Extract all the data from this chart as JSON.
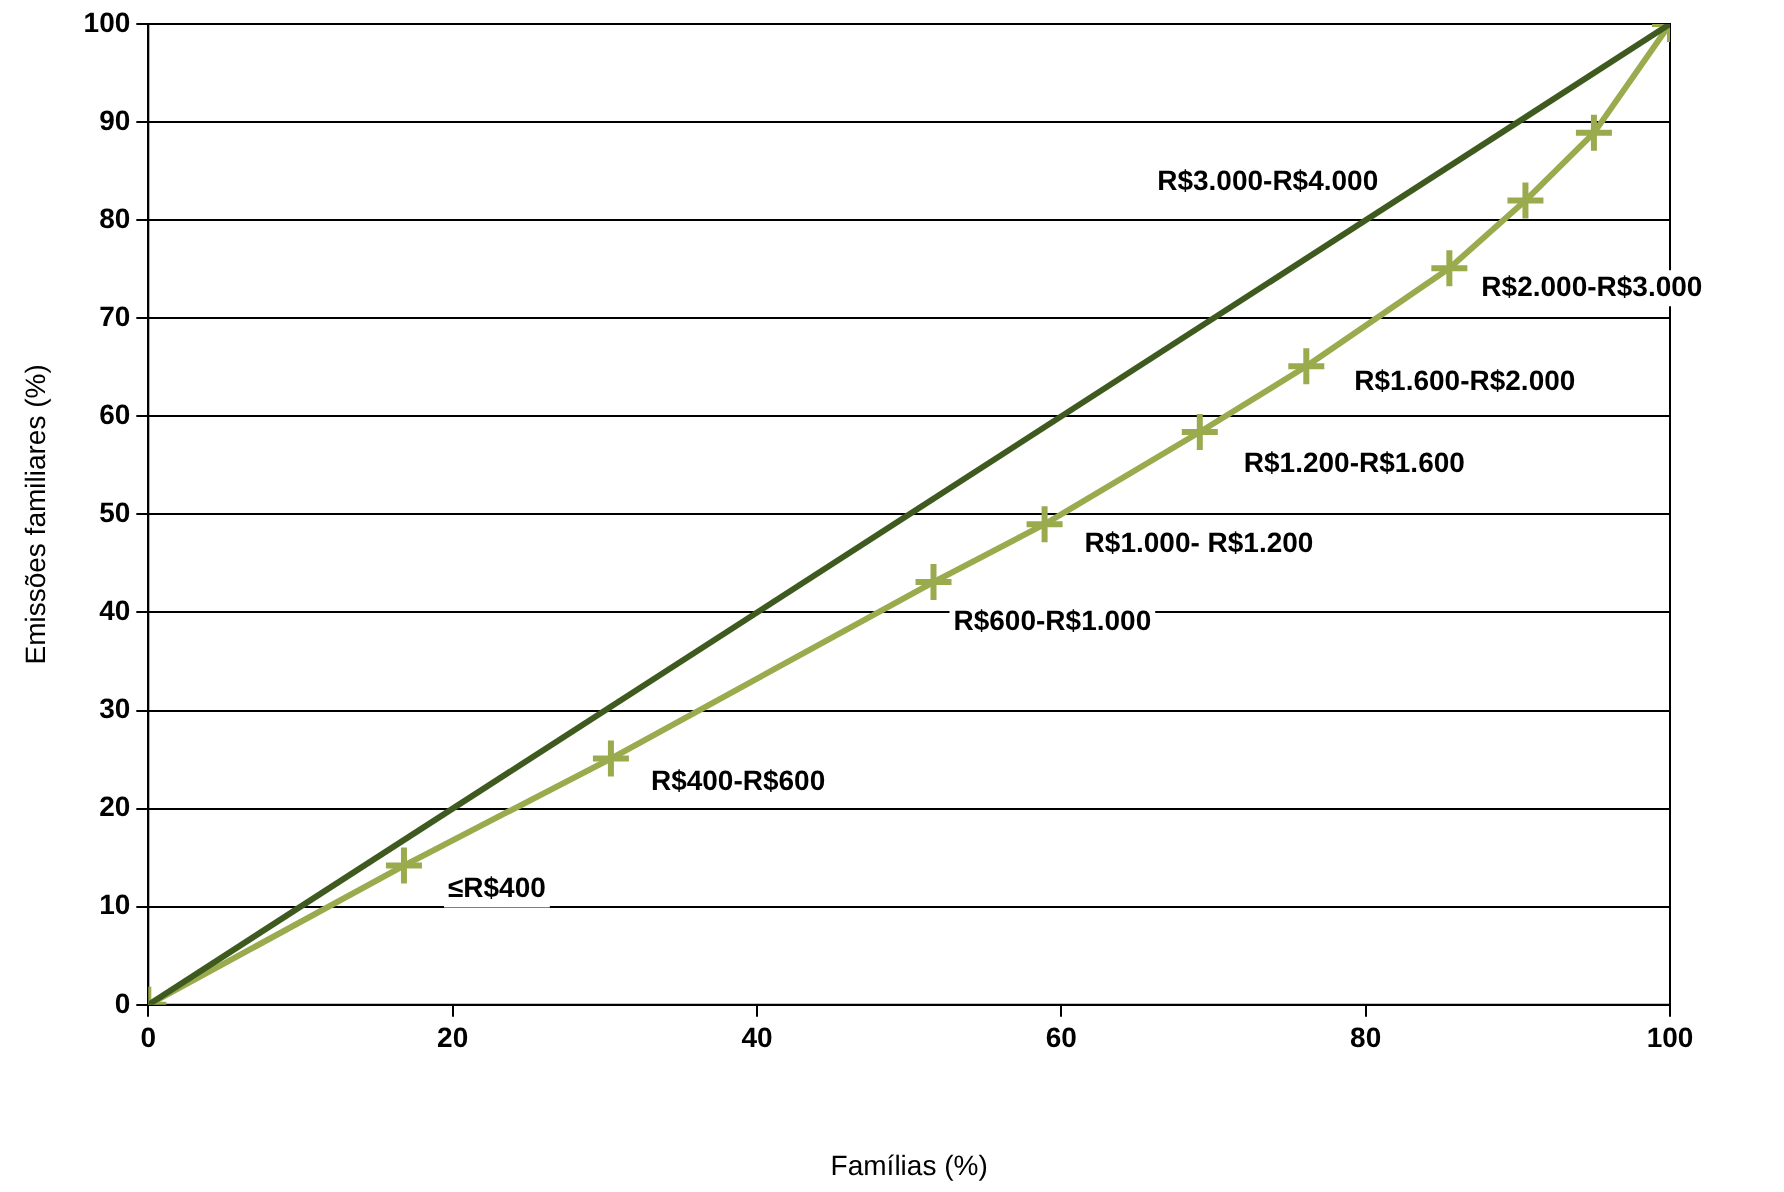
{
  "chart_data": {
    "type": "line",
    "xlabel": "Famílias (%)",
    "ylabel": "Emissões familiares (%)",
    "xlim": [
      0,
      100
    ],
    "xticks": [
      0,
      20,
      40,
      60,
      80,
      100
    ],
    "ylim": [
      0,
      100
    ],
    "yticks": [
      0,
      10,
      20,
      30,
      40,
      50,
      60,
      70,
      80,
      90,
      100
    ],
    "grid": "y",
    "legend": false,
    "series": [
      {
        "color": "#3e5a1f",
        "marker": "none",
        "x": [
          0,
          100
        ],
        "values": [
          0,
          100
        ]
      },
      {
        "color": "#9aab4e",
        "marker": "cross",
        "x": [
          0,
          16.8,
          30.4,
          51.6,
          58.9,
          69.1,
          76.1,
          85.5,
          90.5,
          95.0,
          100
        ],
        "values": [
          0,
          14.2,
          25.1,
          43.1,
          49.0,
          58.4,
          65.1,
          75.1,
          82.0,
          88.9,
          100
        ]
      }
    ],
    "annotations": [
      {
        "text": "≤R$400",
        "x": 16.8,
        "y": 14.2
      },
      {
        "text": "R$400-R$600",
        "x": 30.4,
        "y": 25.1
      },
      {
        "text": "R$600-R$1.000",
        "x": 51.6,
        "y": 43.1
      },
      {
        "text": "R$1.000- R$1.200",
        "x": 58.9,
        "y": 49.0
      },
      {
        "text": "R$1.200-R$1.600",
        "x": 69.1,
        "y": 58.4
      },
      {
        "text": "R$1.600-R$2.000",
        "x": 76.1,
        "y": 65.1
      },
      {
        "text": "R$2.000-R$3.000",
        "x": 85.5,
        "y": 75.1
      },
      "R$3.000-R$4.000"
    ]
  }
}
